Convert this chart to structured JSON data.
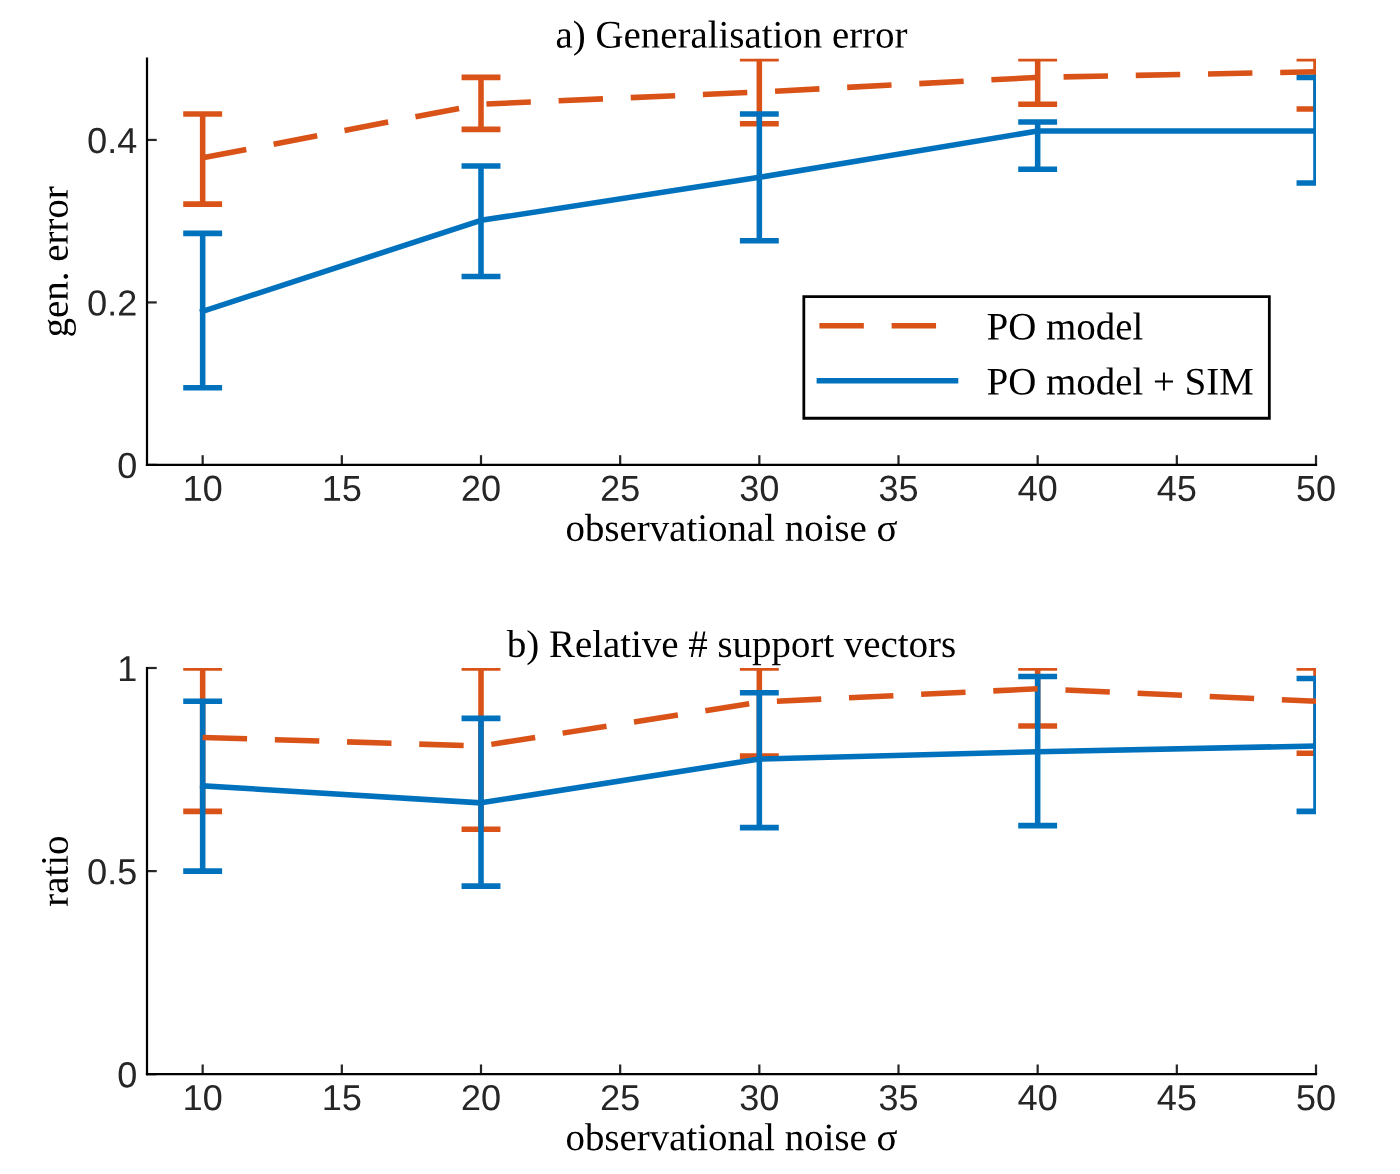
{
  "chart_data": [
    {
      "type": "line",
      "title": "a) Generalisation error",
      "xlabel": "observational noise σ",
      "ylabel": "gen. error",
      "x": [
        10,
        20,
        30,
        40,
        50
      ],
      "xlim": [
        8,
        50
      ],
      "xticks": [
        10,
        15,
        20,
        25,
        30,
        35,
        40,
        45,
        50
      ],
      "ylim": [
        0,
        0.5
      ],
      "yticks": [
        0,
        0.2,
        0.4
      ],
      "legend": "bottom right",
      "grid": false,
      "series": [
        {
          "name": "PO model",
          "color": "#d95319",
          "line_style": "dashed",
          "values": [
            0.378,
            0.444,
            0.459,
            0.477,
            0.484
          ],
          "errors": [
            [
              0.321,
              0.432
            ],
            [
              0.413,
              0.477
            ],
            [
              0.42,
              0.5
            ],
            [
              0.444,
              0.5
            ],
            [
              0.438,
              0.5
            ]
          ]
        },
        {
          "name": "PO model + SIM",
          "color": "#0072bd",
          "line_style": "solid",
          "values": [
            0.189,
            0.301,
            0.354,
            0.411,
            0.411
          ],
          "errors": [
            [
              0.095,
              0.285
            ],
            [
              0.232,
              0.368
            ],
            [
              0.276,
              0.432
            ],
            [
              0.364,
              0.422
            ],
            [
              0.347,
              0.477
            ]
          ]
        }
      ]
    },
    {
      "type": "line",
      "title": "b) Relative # support vectors",
      "xlabel": "observational noise σ",
      "ylabel": "ratio",
      "x": [
        10,
        20,
        30,
        40,
        50
      ],
      "xlim": [
        8,
        50
      ],
      "xticks": [
        10,
        15,
        20,
        25,
        30,
        35,
        40,
        45,
        50
      ],
      "ylim": [
        0,
        1
      ],
      "yticks": [
        0,
        0.5,
        1
      ],
      "legend": false,
      "grid": false,
      "series": [
        {
          "color": "#d95319",
          "line_style": "dashed",
          "values": [
            0.829,
            0.808,
            0.916,
            0.949,
            0.918
          ],
          "errors": [
            [
              0.647,
              1
            ],
            [
              0.603,
              1
            ],
            [
              0.783,
              1
            ],
            [
              0.857,
              1
            ],
            [
              0.79,
              1
            ]
          ]
        },
        {
          "color": "#0072bd",
          "line_style": "solid",
          "values": [
            0.71,
            0.668,
            0.776,
            0.794,
            0.808
          ],
          "errors": [
            [
              0.5,
              0.918
            ],
            [
              0.463,
              0.876
            ],
            [
              0.607,
              0.939
            ],
            [
              0.612,
              0.979
            ],
            [
              0.647,
              0.974
            ]
          ]
        }
      ]
    }
  ]
}
